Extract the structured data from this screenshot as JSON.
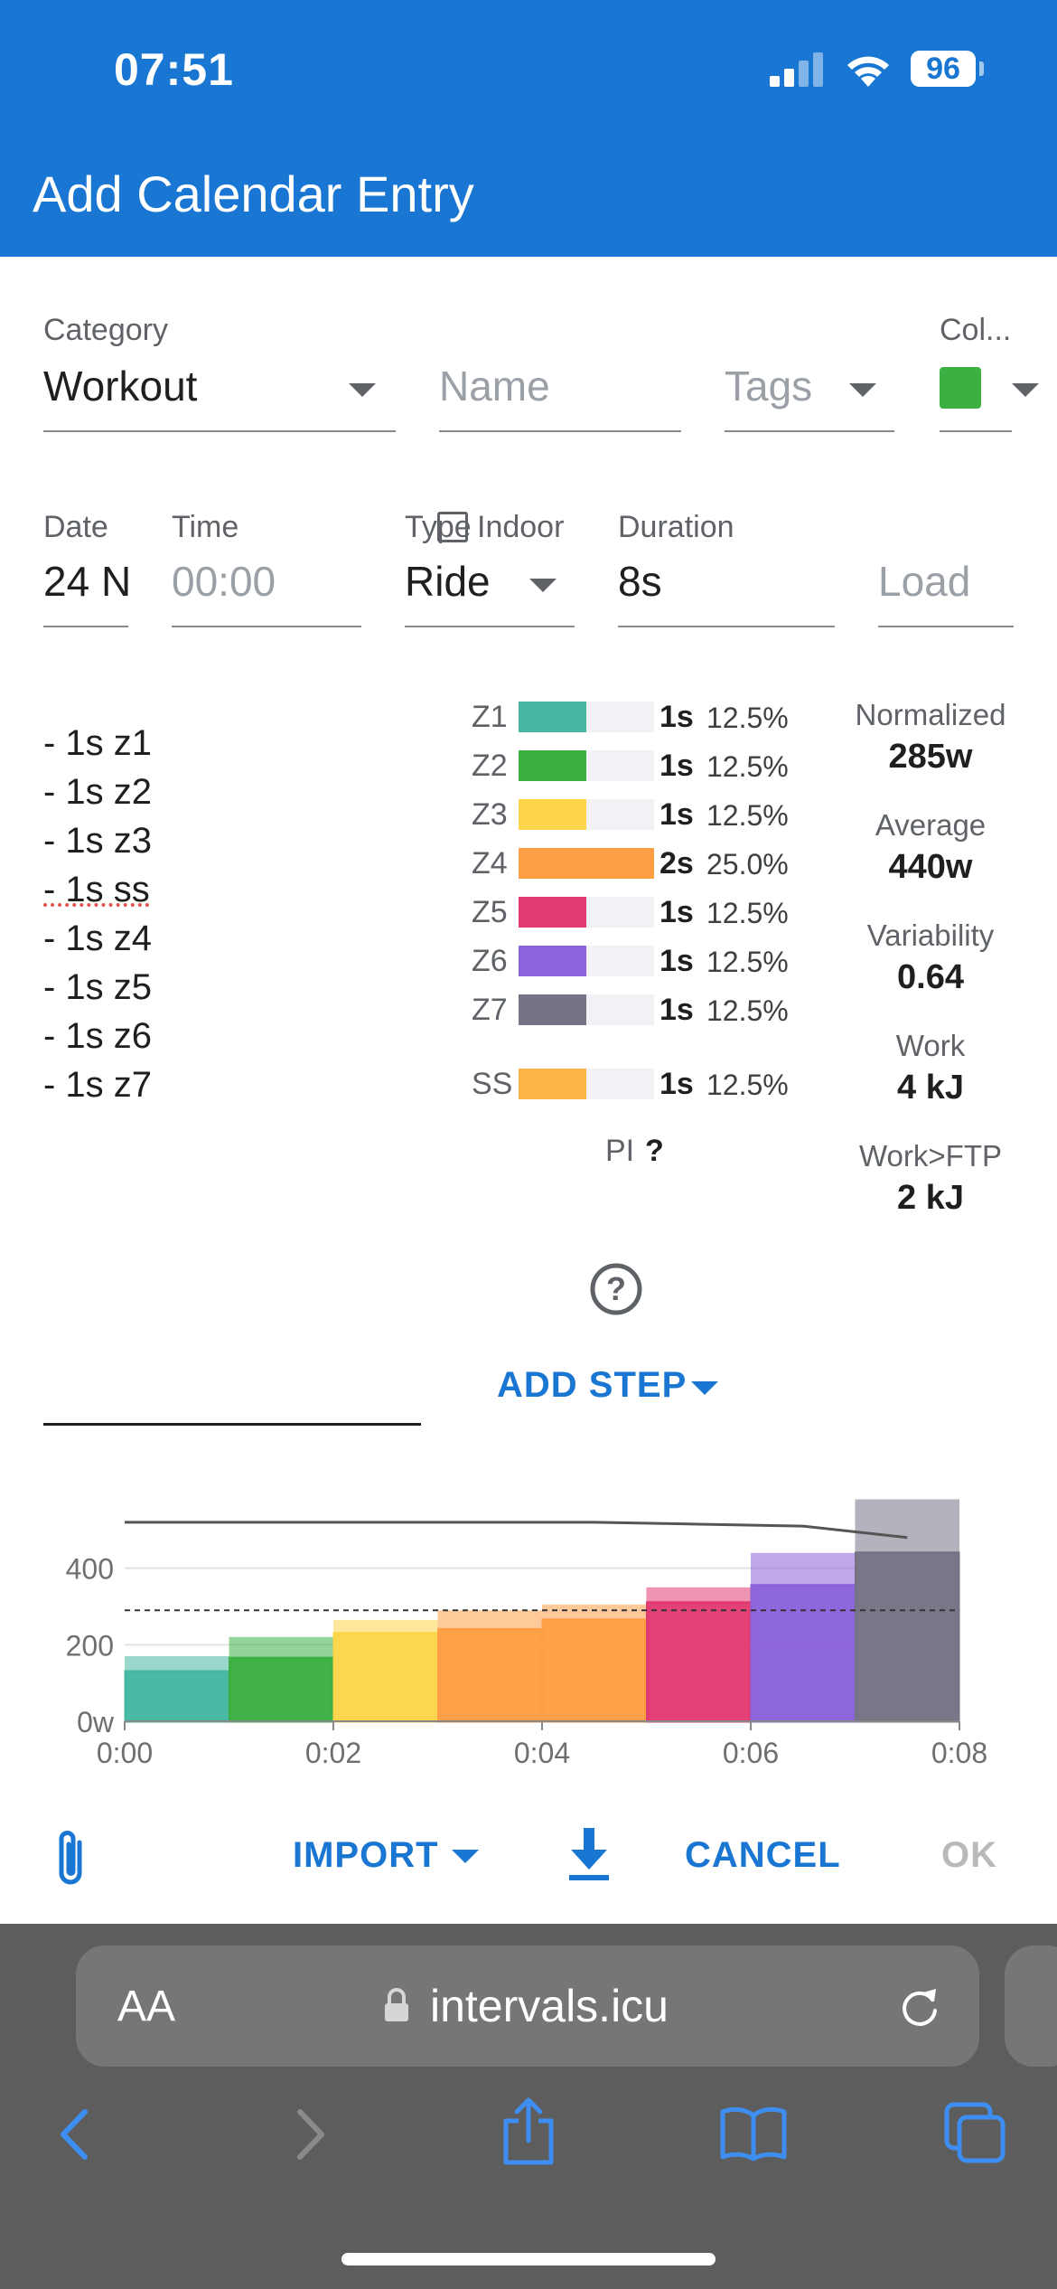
{
  "status": {
    "time": "07:51",
    "battery": "96"
  },
  "appbar": {
    "title": "Add Calendar Entry"
  },
  "form": {
    "category": {
      "label": "Category",
      "value": "Workout"
    },
    "name": {
      "placeholder": "Name"
    },
    "tags": {
      "placeholder": "Tags"
    },
    "color": {
      "label": "Col...",
      "value": "#3cb043"
    },
    "date": {
      "label": "Date",
      "value": "24 N"
    },
    "time": {
      "label": "Time",
      "placeholder": "00:00"
    },
    "type": {
      "label": "Type",
      "value": "Ride",
      "indoor_label": "Indoor"
    },
    "duration": {
      "label": "Duration",
      "value": "8s"
    },
    "load": {
      "placeholder": "Load"
    }
  },
  "steps": [
    "- 1s z1",
    "- 1s z2",
    "- 1s z3",
    "- 1s ss",
    "- 1s z4",
    "- 1s z5",
    "- 1s z6",
    "- 1s z7"
  ],
  "zones": [
    {
      "zone": "Z1",
      "time": "1s",
      "pct": "12.5%",
      "fraction": 0.5,
      "color": "#46b8a1"
    },
    {
      "zone": "Z2",
      "time": "1s",
      "pct": "12.5%",
      "fraction": 0.5,
      "color": "#3cb043"
    },
    {
      "zone": "Z3",
      "time": "1s",
      "pct": "12.5%",
      "fraction": 0.5,
      "color": "#fcd54a"
    },
    {
      "zone": "Z4",
      "time": "2s",
      "pct": "25.0%",
      "fraction": 1.0,
      "color": "#fe9e45"
    },
    {
      "zone": "Z5",
      "time": "1s",
      "pct": "12.5%",
      "fraction": 0.5,
      "color": "#e23b72"
    },
    {
      "zone": "Z6",
      "time": "1s",
      "pct": "12.5%",
      "fraction": 0.5,
      "color": "#8c63db"
    },
    {
      "zone": "Z7",
      "time": "1s",
      "pct": "12.5%",
      "fraction": 0.5,
      "color": "#767385"
    },
    {
      "zone": "SS",
      "time": "1s",
      "pct": "12.5%",
      "fraction": 0.5,
      "color": "#fcb447"
    }
  ],
  "pi": {
    "label": "PI",
    "value": "?"
  },
  "metrics": [
    {
      "label": "Normalized",
      "value": "285w"
    },
    {
      "label": "Average",
      "value": "440w"
    },
    {
      "label": "Variability",
      "value": "0.64"
    },
    {
      "label": "Work",
      "value": "4 kJ"
    },
    {
      "label": "Work>FTP",
      "value": "2 kJ"
    }
  ],
  "add_step_label": "ADD STEP",
  "chart_data": {
    "type": "bar",
    "x": [
      "0:00",
      "0:01",
      "0:02",
      "0:03",
      "0:04",
      "0:05",
      "0:06",
      "0:07"
    ],
    "xticks": [
      "0:00",
      "0:02",
      "0:04",
      "0:06",
      "0:08"
    ],
    "yticks": [
      "0w",
      "200",
      "400"
    ],
    "xlim": [
      0,
      8
    ],
    "ylim": [
      0,
      600
    ],
    "series": [
      {
        "values": [
          130,
          165,
          230,
          240,
          265,
          310,
          355,
          440
        ]
      },
      {
        "values": [
          170,
          220,
          265,
          290,
          305,
          350,
          440,
          580
        ]
      }
    ],
    "line": [
      520,
      520,
      520,
      520,
      520,
      515,
      510,
      480
    ],
    "dashed_line": 290,
    "colors": [
      "#46b8a1",
      "#3cb043",
      "#fcd54a",
      "#fe9e45",
      "#fe9e45",
      "#e23b72",
      "#8c63db",
      "#767385"
    ]
  },
  "footer": {
    "import_label": "IMPORT",
    "cancel_label": "CANCEL",
    "ok_label": "OK"
  },
  "browser": {
    "text_size_label": "AA",
    "url": "intervals.icu"
  }
}
